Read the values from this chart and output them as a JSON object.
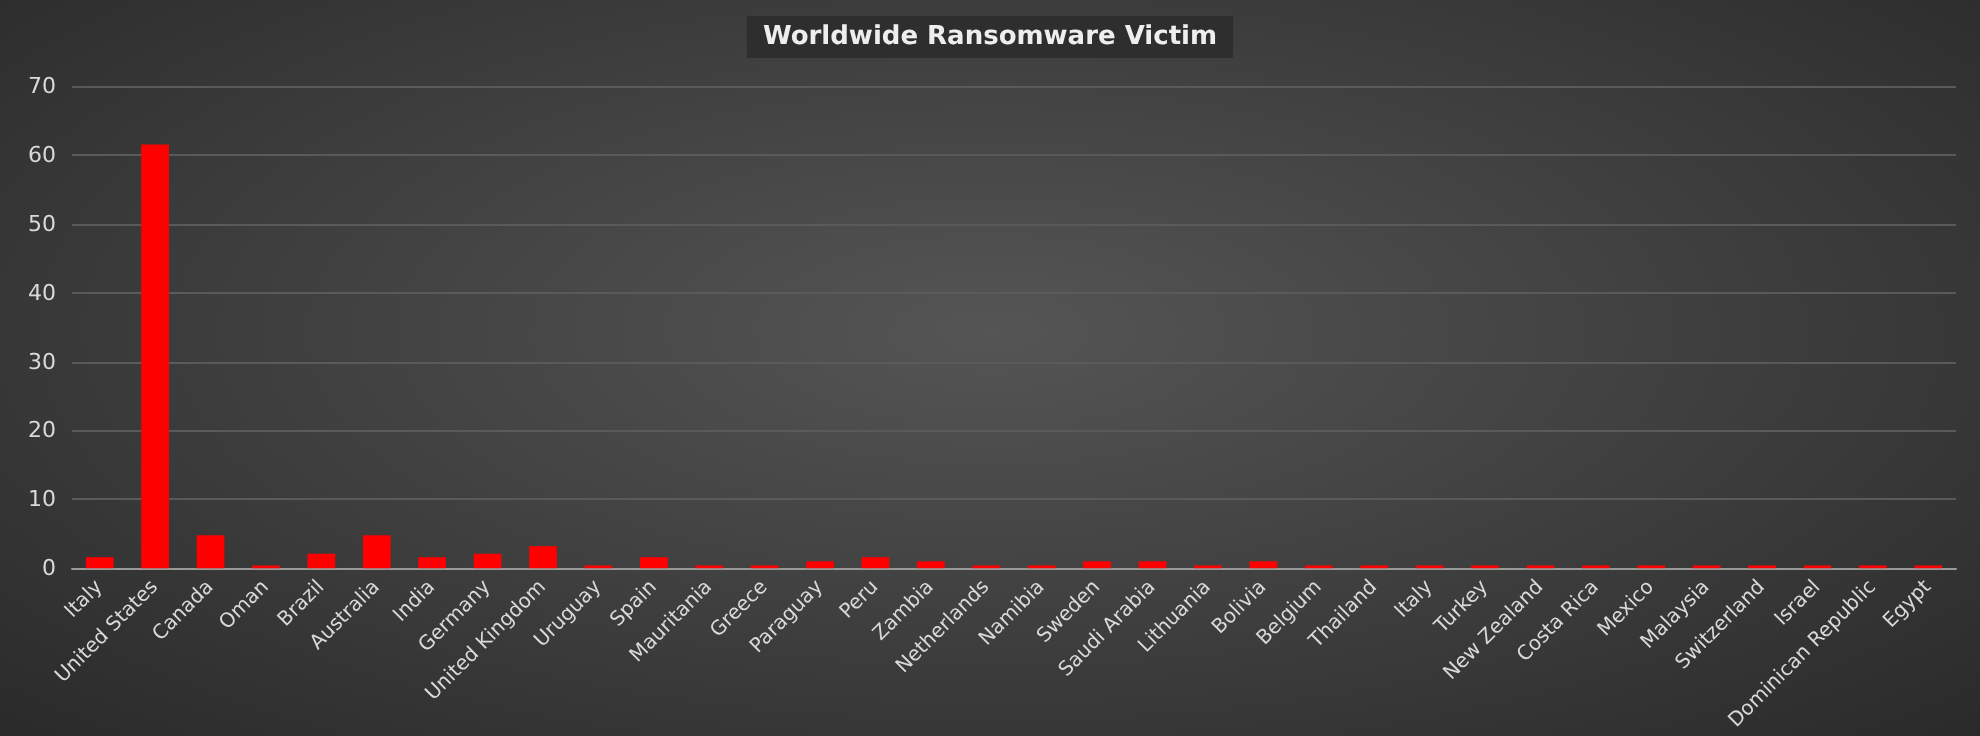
{
  "chart_data": {
    "type": "bar",
    "title": "Worldwide Ransomware Victim",
    "categories": [
      "Italy",
      "United States",
      "Canada",
      "Oman",
      "Brazil",
      "Australia",
      "India",
      "Germany",
      "United Kingdom",
      "Uruguay",
      "Spain",
      "Mauritania",
      "Greece",
      "Paraguay",
      "Peru",
      "Zambia",
      "Netherlands",
      "Namibia",
      "Sweden",
      "Saudi Arabia",
      "Lithuania",
      "Bolivia",
      "Belgium",
      "Thailand",
      "Italy",
      "Turkey",
      "New Zealand",
      "Costa Rica",
      "Mexico",
      "Malaysia",
      "Switzerland",
      "Israel",
      "Dominican Republic",
      "Egypt"
    ],
    "values": [
      1.6,
      61.5,
      4.8,
      0.4,
      2.1,
      4.8,
      1.6,
      2.1,
      3.2,
      0.4,
      1.6,
      0.4,
      0.4,
      1,
      1.6,
      1,
      0.4,
      0.4,
      1,
      1,
      0.4,
      1,
      0.4,
      0.4,
      0.4,
      0.4,
      0.4,
      0.4,
      0.4,
      0.4,
      0.4,
      0.4,
      0.4,
      0.4
    ],
    "color": "#ff0000",
    "ylim": [
      0,
      70
    ],
    "yticks": [
      0,
      10,
      20,
      30,
      40,
      50,
      60,
      70
    ],
    "grid": "y"
  }
}
